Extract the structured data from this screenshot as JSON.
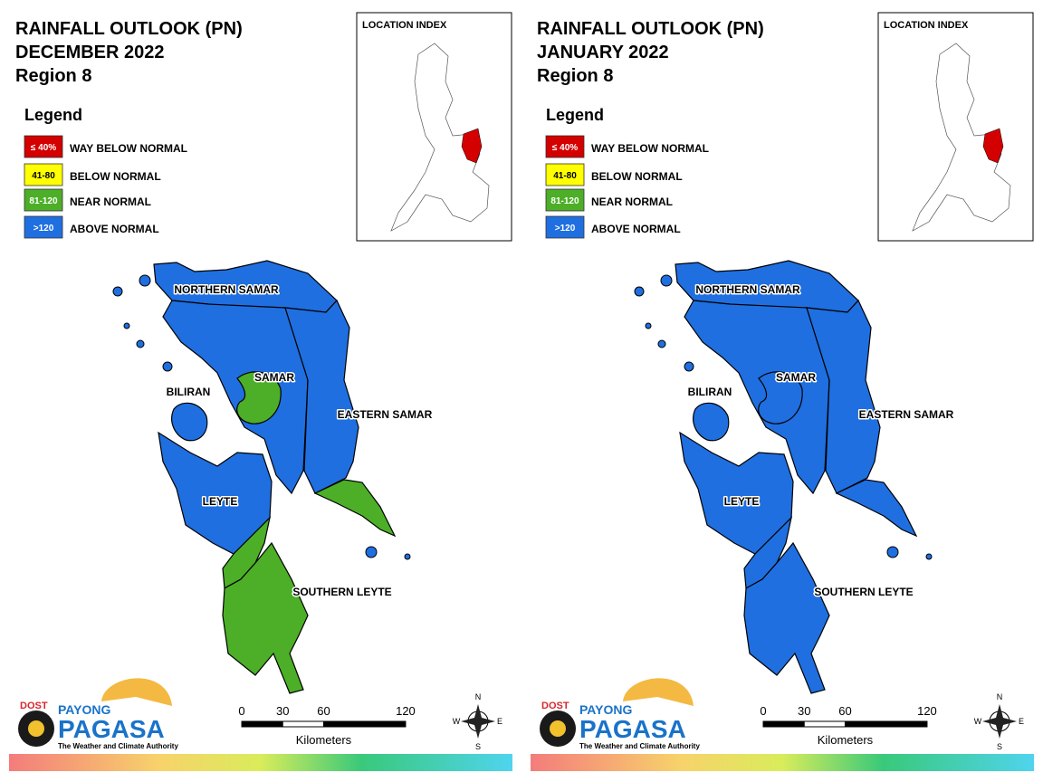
{
  "panels": [
    {
      "title_lines": [
        "RAINFALL OUTLOOK (PN)",
        "DECEMBER 2022",
        "Region 8"
      ],
      "legend": {
        "title": "Legend",
        "items": [
          {
            "swatch": "≤ 40%",
            "label": "WAY BELOW NORMAL",
            "color": "#d40000"
          },
          {
            "swatch": "41-80",
            "label": "BELOW NORMAL",
            "color": "#ffff00"
          },
          {
            "swatch": "81-120",
            "label": "NEAR NORMAL",
            "color": "#4caf27"
          },
          {
            "swatch": ">120",
            "label": "ABOVE NORMAL",
            "color": "#1f6fe0"
          }
        ]
      },
      "location_index": "LOCATION INDEX",
      "provinces": [
        {
          "name": "NORTHERN SAMAR",
          "colors": [
            "#1f6fe0"
          ]
        },
        {
          "name": "SAMAR",
          "colors": [
            "#1f6fe0",
            "#4caf27"
          ]
        },
        {
          "name": "BILIRAN",
          "colors": [
            "#1f6fe0"
          ]
        },
        {
          "name": "EASTERN SAMAR",
          "colors": [
            "#1f6fe0",
            "#4caf27"
          ]
        },
        {
          "name": "LEYTE",
          "colors": [
            "#1f6fe0",
            "#4caf27"
          ]
        },
        {
          "name": "SOUTHERN LEYTE",
          "colors": [
            "#4caf27"
          ]
        }
      ],
      "scale": {
        "ticks": [
          0,
          30,
          60,
          120
        ],
        "unit": "Kilometers"
      },
      "compass": {
        "n": "N",
        "e": "E",
        "s": "S",
        "w": "W"
      },
      "logo": {
        "agency": "DOST",
        "brand_top": "PAYONG",
        "brand": "PAGASA",
        "tagline": "The Weather and Climate Authority"
      }
    },
    {
      "title_lines": [
        "RAINFALL OUTLOOK (PN)",
        "JANUARY 2022",
        "Region 8"
      ],
      "legend": {
        "title": "Legend",
        "items": [
          {
            "swatch": "≤ 40%",
            "label": "WAY BELOW NORMAL",
            "color": "#d40000"
          },
          {
            "swatch": "41-80",
            "label": "BELOW NORMAL",
            "color": "#ffff00"
          },
          {
            "swatch": "81-120",
            "label": "NEAR NORMAL",
            "color": "#4caf27"
          },
          {
            "swatch": ">120",
            "label": "ABOVE NORMAL",
            "color": "#1f6fe0"
          }
        ]
      },
      "location_index": "LOCATION INDEX",
      "provinces": [
        {
          "name": "NORTHERN SAMAR",
          "colors": [
            "#1f6fe0"
          ]
        },
        {
          "name": "SAMAR",
          "colors": [
            "#1f6fe0",
            "#1f6fe0"
          ]
        },
        {
          "name": "BILIRAN",
          "colors": [
            "#1f6fe0"
          ]
        },
        {
          "name": "EASTERN SAMAR",
          "colors": [
            "#1f6fe0",
            "#1f6fe0"
          ]
        },
        {
          "name": "LEYTE",
          "colors": [
            "#1f6fe0",
            "#1f6fe0"
          ]
        },
        {
          "name": "SOUTHERN LEYTE",
          "colors": [
            "#1f6fe0"
          ]
        }
      ],
      "scale": {
        "ticks": [
          0,
          30,
          60,
          120
        ],
        "unit": "Kilometers"
      },
      "compass": {
        "n": "N",
        "e": "E",
        "s": "S",
        "w": "W"
      },
      "logo": {
        "agency": "DOST",
        "brand_top": "PAYONG",
        "brand": "PAGASA",
        "tagline": "The Weather and Climate Authority"
      }
    }
  ]
}
